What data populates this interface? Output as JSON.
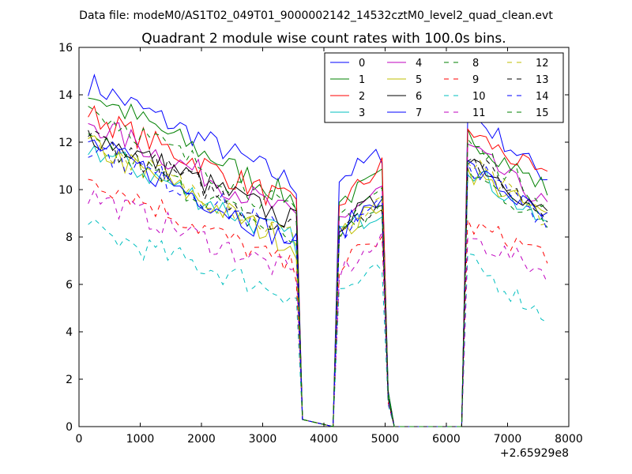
{
  "suptitle": "Data file: modeM0/AS1T02_049T01_9000002142_14532cztM0_level2_quad_clean.evt",
  "chart_data": {
    "type": "line",
    "title": "Quadrant 2 module wise count rates with 100.0s bins.",
    "xlabel": "",
    "ylabel": "",
    "x_offset_label": "+2.65929e8",
    "xlim": [
      0,
      8000
    ],
    "ylim": [
      0,
      16
    ],
    "xticks": [
      0,
      1000,
      2000,
      3000,
      4000,
      5000,
      6000,
      7000,
      8000
    ],
    "yticks": [
      0,
      2,
      4,
      6,
      8,
      10,
      12,
      14,
      16
    ],
    "grid": false,
    "legend": {
      "placement": "top-right",
      "columns": 4
    },
    "segments": [
      {
        "x_start": 150,
        "x_end": 3550,
        "step": 100
      },
      {
        "x_start": 3650,
        "x_end": 4150,
        "step": 100
      },
      {
        "x_start": 4250,
        "x_end": 4950,
        "step": 100
      },
      {
        "x_start": 5050,
        "x_end": 5150,
        "step": 100
      },
      {
        "x_start": 5250,
        "x_end": 6250,
        "step": 100
      },
      {
        "x_start": 6350,
        "x_end": 7650,
        "step": 100
      }
    ],
    "series": [
      {
        "name": "0",
        "color": "#0000ff",
        "dash": "solid",
        "seg_start": [
          14.5,
          10.2
        ],
        "seg_end": [
          0.3,
          0.0
        ],
        "seg_mid": [
          10.5,
          11.5
        ],
        "seg_tail": [
          1.5,
          0.0
        ],
        "seg_zero": [
          0.0,
          0.0
        ],
        "seg_last": [
          13.3,
          10.5
        ]
      },
      {
        "name": "1",
        "color": "#008000",
        "dash": "solid",
        "seg_start": [
          14.1,
          9.5
        ],
        "seg_end": [
          0.3,
          0.0
        ],
        "seg_mid": [
          9.5,
          10.5
        ],
        "seg_tail": [
          1.5,
          0.0
        ],
        "seg_zero": [
          0.0,
          0.0
        ],
        "seg_last": [
          12.3,
          10.0
        ]
      },
      {
        "name": "2",
        "color": "#ff0000",
        "dash": "solid",
        "seg_start": [
          13.2,
          9.3
        ],
        "seg_end": [
          0.3,
          0.0
        ],
        "seg_mid": [
          9.4,
          11.0
        ],
        "seg_tail": [
          1.2,
          0.0
        ],
        "seg_zero": [
          0.0,
          0.0
        ],
        "seg_last": [
          12.5,
          10.4
        ]
      },
      {
        "name": "3",
        "color": "#00bfbf",
        "dash": "solid",
        "seg_start": [
          11.8,
          7.8
        ],
        "seg_end": [
          0.3,
          0.0
        ],
        "seg_mid": [
          8.2,
          9.2
        ],
        "seg_tail": [
          1.2,
          0.0
        ],
        "seg_zero": [
          0.0,
          0.0
        ],
        "seg_last": [
          11.0,
          8.4
        ]
      },
      {
        "name": "4",
        "color": "#bf00bf",
        "dash": "solid",
        "seg_start": [
          12.9,
          8.8
        ],
        "seg_end": [
          0.3,
          0.0
        ],
        "seg_mid": [
          8.8,
          10.0
        ],
        "seg_tail": [
          1.2,
          0.0
        ],
        "seg_zero": [
          0.0,
          0.0
        ],
        "seg_last": [
          11.8,
          9.3
        ]
      },
      {
        "name": "5",
        "color": "#bfbf00",
        "dash": "solid",
        "seg_start": [
          11.9,
          7.6
        ],
        "seg_end": [
          0.3,
          0.0
        ],
        "seg_mid": [
          8.0,
          9.5
        ],
        "seg_tail": [
          1.2,
          0.0
        ],
        "seg_zero": [
          0.0,
          0.0
        ],
        "seg_last": [
          10.8,
          8.8
        ]
      },
      {
        "name": "6",
        "color": "#000000",
        "dash": "solid",
        "seg_start": [
          12.4,
          8.6
        ],
        "seg_end": [
          0.3,
          0.0
        ],
        "seg_mid": [
          8.6,
          9.6
        ],
        "seg_tail": [
          1.2,
          0.0
        ],
        "seg_zero": [
          0.0,
          0.0
        ],
        "seg_last": [
          11.5,
          8.9
        ]
      },
      {
        "name": "7",
        "color": "#0000ff",
        "dash": "solid",
        "seg_start": [
          12.0,
          7.7
        ],
        "seg_end": [
          0.3,
          0.0
        ],
        "seg_mid": [
          8.2,
          9.9
        ],
        "seg_tail": [
          1.2,
          0.0
        ],
        "seg_zero": [
          0.0,
          0.0
        ],
        "seg_last": [
          11.0,
          8.7
        ]
      },
      {
        "name": "8",
        "color": "#008000",
        "dash": "dashed",
        "seg_start": [
          12.0,
          7.8
        ],
        "seg_end": [
          0.3,
          0.0
        ],
        "seg_mid": [
          8.1,
          9.2
        ],
        "seg_tail": [
          1.2,
          0.0
        ],
        "seg_zero": [
          0.0,
          0.0
        ],
        "seg_last": [
          10.8,
          8.5
        ]
      },
      {
        "name": "9",
        "color": "#ff0000",
        "dash": "dashed",
        "seg_start": [
          10.6,
          6.6
        ],
        "seg_end": [
          0.3,
          0.0
        ],
        "seg_mid": [
          6.8,
          8.0
        ],
        "seg_tail": [
          1.0,
          0.0
        ],
        "seg_zero": [
          0.0,
          0.0
        ],
        "seg_last": [
          8.5,
          7.3
        ]
      },
      {
        "name": "10",
        "color": "#00bfbf",
        "dash": "dashed",
        "seg_start": [
          8.3,
          5.5
        ],
        "seg_end": [
          0.3,
          0.0
        ],
        "seg_mid": [
          5.7,
          6.6
        ],
        "seg_tail": [
          0.9,
          0.0
        ],
        "seg_zero": [
          0.0,
          0.0
        ],
        "seg_last": [
          7.0,
          4.6
        ]
      },
      {
        "name": "11",
        "color": "#bf00bf",
        "dash": "dashed",
        "seg_start": [
          9.8,
          6.4
        ],
        "seg_end": [
          0.3,
          0.0
        ],
        "seg_mid": [
          6.5,
          7.8
        ],
        "seg_tail": [
          1.0,
          0.0
        ],
        "seg_zero": [
          0.0,
          0.0
        ],
        "seg_last": [
          8.0,
          6.5
        ]
      },
      {
        "name": "12",
        "color": "#bfbf00",
        "dash": "dashed",
        "seg_start": [
          12.1,
          7.9
        ],
        "seg_end": [
          0.3,
          0.0
        ],
        "seg_mid": [
          8.2,
          9.4
        ],
        "seg_tail": [
          1.2,
          0.0
        ],
        "seg_zero": [
          0.0,
          0.0
        ],
        "seg_last": [
          11.2,
          8.6
        ]
      },
      {
        "name": "13",
        "color": "#000000",
        "dash": "dashed",
        "seg_start": [
          12.3,
          8.3
        ],
        "seg_end": [
          0.3,
          0.0
        ],
        "seg_mid": [
          8.4,
          9.5
        ],
        "seg_tail": [
          1.2,
          0.0
        ],
        "seg_zero": [
          0.0,
          0.0
        ],
        "seg_last": [
          11.4,
          8.9
        ]
      },
      {
        "name": "14",
        "color": "#0000ff",
        "dash": "dashed",
        "seg_start": [
          11.9,
          7.9
        ],
        "seg_end": [
          0.3,
          0.0
        ],
        "seg_mid": [
          8.1,
          9.4
        ],
        "seg_tail": [
          1.2,
          0.0
        ],
        "seg_zero": [
          0.0,
          0.0
        ],
        "seg_last": [
          11.1,
          8.7
        ]
      },
      {
        "name": "15",
        "color": "#008000",
        "dash": "dashed",
        "seg_start": [
          13.5,
          8.9
        ],
        "seg_end": [
          0.3,
          0.0
        ],
        "seg_mid": [
          8.9,
          10.0
        ],
        "seg_tail": [
          1.2,
          0.0
        ],
        "seg_zero": [
          0.0,
          0.0
        ],
        "seg_last": [
          12.0,
          9.5
        ]
      }
    ]
  }
}
